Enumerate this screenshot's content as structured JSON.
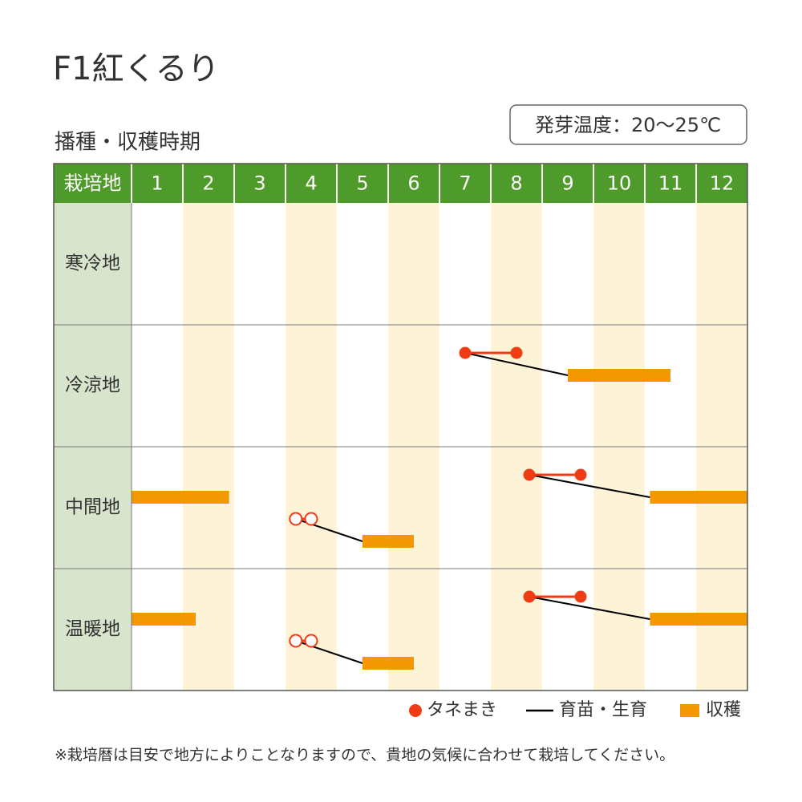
{
  "chart_data": {
    "type": "calendar",
    "title": "F1紅くるり",
    "subtitle": "播種・収穫時期",
    "annotation": "発芽温度：20～25℃",
    "corner_label": "栽培地",
    "xlim": [
      0.5,
      12.5
    ],
    "xticks": [
      1,
      2,
      3,
      4,
      5,
      6,
      7,
      8,
      9,
      10,
      11,
      12
    ],
    "sow_color": "#f03c14",
    "grow_color": "#000000",
    "harvest_color": "#f39800",
    "header_color": "#4e9a2a",
    "band_color": "#fdf3d6",
    "legend": [
      "タネまき",
      "育苗・生育",
      "収穫"
    ],
    "regions": [
      {
        "name": "寒冷地",
        "lanes": []
      },
      {
        "name": "冷涼地",
        "lanes": [
          [
            {
              "sow": [
                7,
                8
              ],
              "harvest": [
                9,
                11
              ]
            }
          ]
        ]
      },
      {
        "name": "中間地",
        "lanes": [
          [
            {
              "harvest": [
                0.5,
                2.4
              ]
            },
            {
              "sow": [
                8.25,
                9.25
              ],
              "harvest": [
                10.6,
                12.5
              ]
            }
          ],
          [
            {
              "sow": [
                3.7,
                4
              ],
              "harvest": [
                5,
                6
              ],
              "open": true
            }
          ]
        ]
      },
      {
        "name": "温暖地",
        "lanes": [
          [
            {
              "harvest": [
                0.5,
                1.75
              ]
            },
            {
              "sow": [
                8.25,
                9.25
              ],
              "harvest": [
                10.6,
                12.5
              ]
            }
          ],
          [
            {
              "sow": [
                3.7,
                4
              ],
              "harvest": [
                5,
                6
              ],
              "open": true
            }
          ]
        ]
      }
    ],
    "footnote": "※栽培暦は目安で地方によりことなりますので、貴地の気候に合わせて栽培してください。"
  }
}
